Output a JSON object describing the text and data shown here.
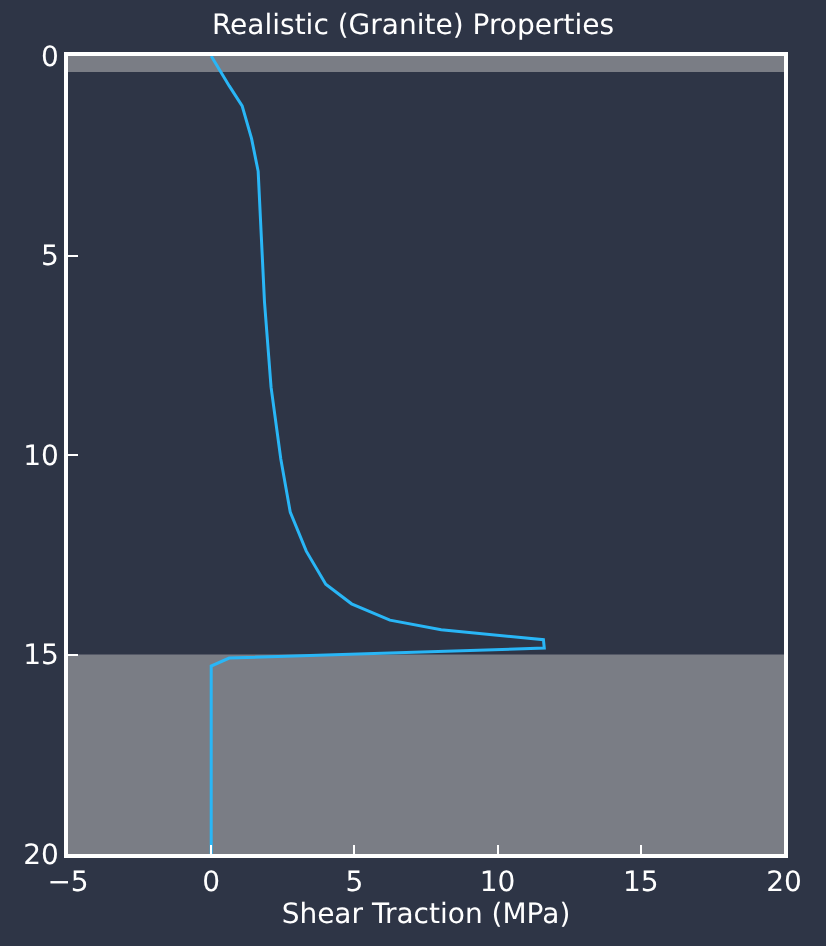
{
  "chart_data": {
    "type": "line",
    "title": "Realistic (Granite) Properties",
    "xlabel": "Shear Traction (MPa)",
    "series": [
      {
        "color": "#29b6f6",
        "x": [
          0,
          0.63,
          1.08,
          1.41,
          1.64,
          1.75,
          1.86,
          2.09,
          2.43,
          2.76,
          3.32,
          4.0,
          4.9,
          6.24,
          8.03,
          11.6,
          11.63,
          0.63,
          0,
          0
        ],
        "values": [
          0,
          0.75,
          1.25,
          2.07,
          2.89,
          4.53,
          6.16,
          8.3,
          10.1,
          11.43,
          12.41,
          13.24,
          13.73,
          14.14,
          14.38,
          14.63,
          14.84,
          15.09,
          15.29,
          20
        ]
      }
    ],
    "xlim": [
      -5,
      20
    ],
    "xticks": [
      {
        "value": -5,
        "label": "−5"
      },
      0,
      5,
      10,
      15,
      20
    ],
    "ylim": [
      20,
      0
    ],
    "yticks": [
      0,
      5,
      10,
      15,
      20
    ],
    "bands": [
      {
        "axis": "y",
        "from": 0,
        "to": 0.4,
        "color": "#7a7d85"
      },
      {
        "axis": "y",
        "from": 15,
        "to": 20,
        "color": "#7a7d85"
      }
    ],
    "grid": false
  }
}
